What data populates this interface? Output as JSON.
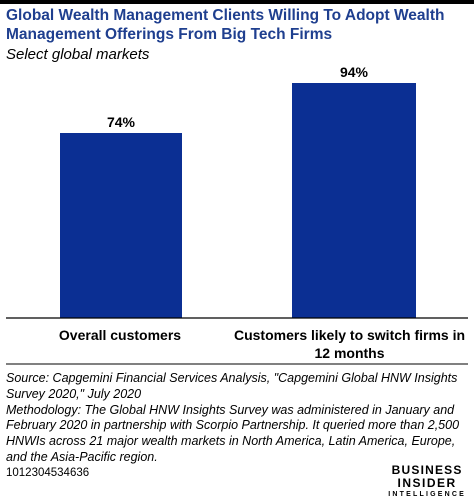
{
  "chart_data": {
    "type": "bar",
    "title": "Global Wealth Management Clients Willing To Adopt Wealth Management Offerings From Big Tech Firms",
    "subtitle": "Select global markets",
    "categories": [
      "Overall customers",
      "Customers likely to switch firms in 12 months"
    ],
    "values": [
      74,
      94
    ],
    "value_labels": [
      "74%",
      "94%"
    ],
    "ylim": [
      0,
      100
    ],
    "grid": false,
    "bar_color": "#0b2f93"
  },
  "notes": {
    "source": "Source: Capgemini Financial Services Analysis, \"Capgemini Global HNW Insights Survey 2020,\" July 2020",
    "methodology": "Methodology: The Global HNW Insights Survey was administered in January and February 2020 in partnership with Scorpio Partnership. It queried more than 2,500 HNWIs across 21 major wealth markets in North America, Latin America, Europe, and the Asia-Pacific region."
  },
  "footer": {
    "chart_id": "1012304534636",
    "logo_line1": "BUSINESS",
    "logo_line2": "INSIDER",
    "logo_line3": "INTELLIGENCE"
  },
  "colors": {
    "title": "#1f3f8f",
    "bar": "#0b2f93"
  }
}
